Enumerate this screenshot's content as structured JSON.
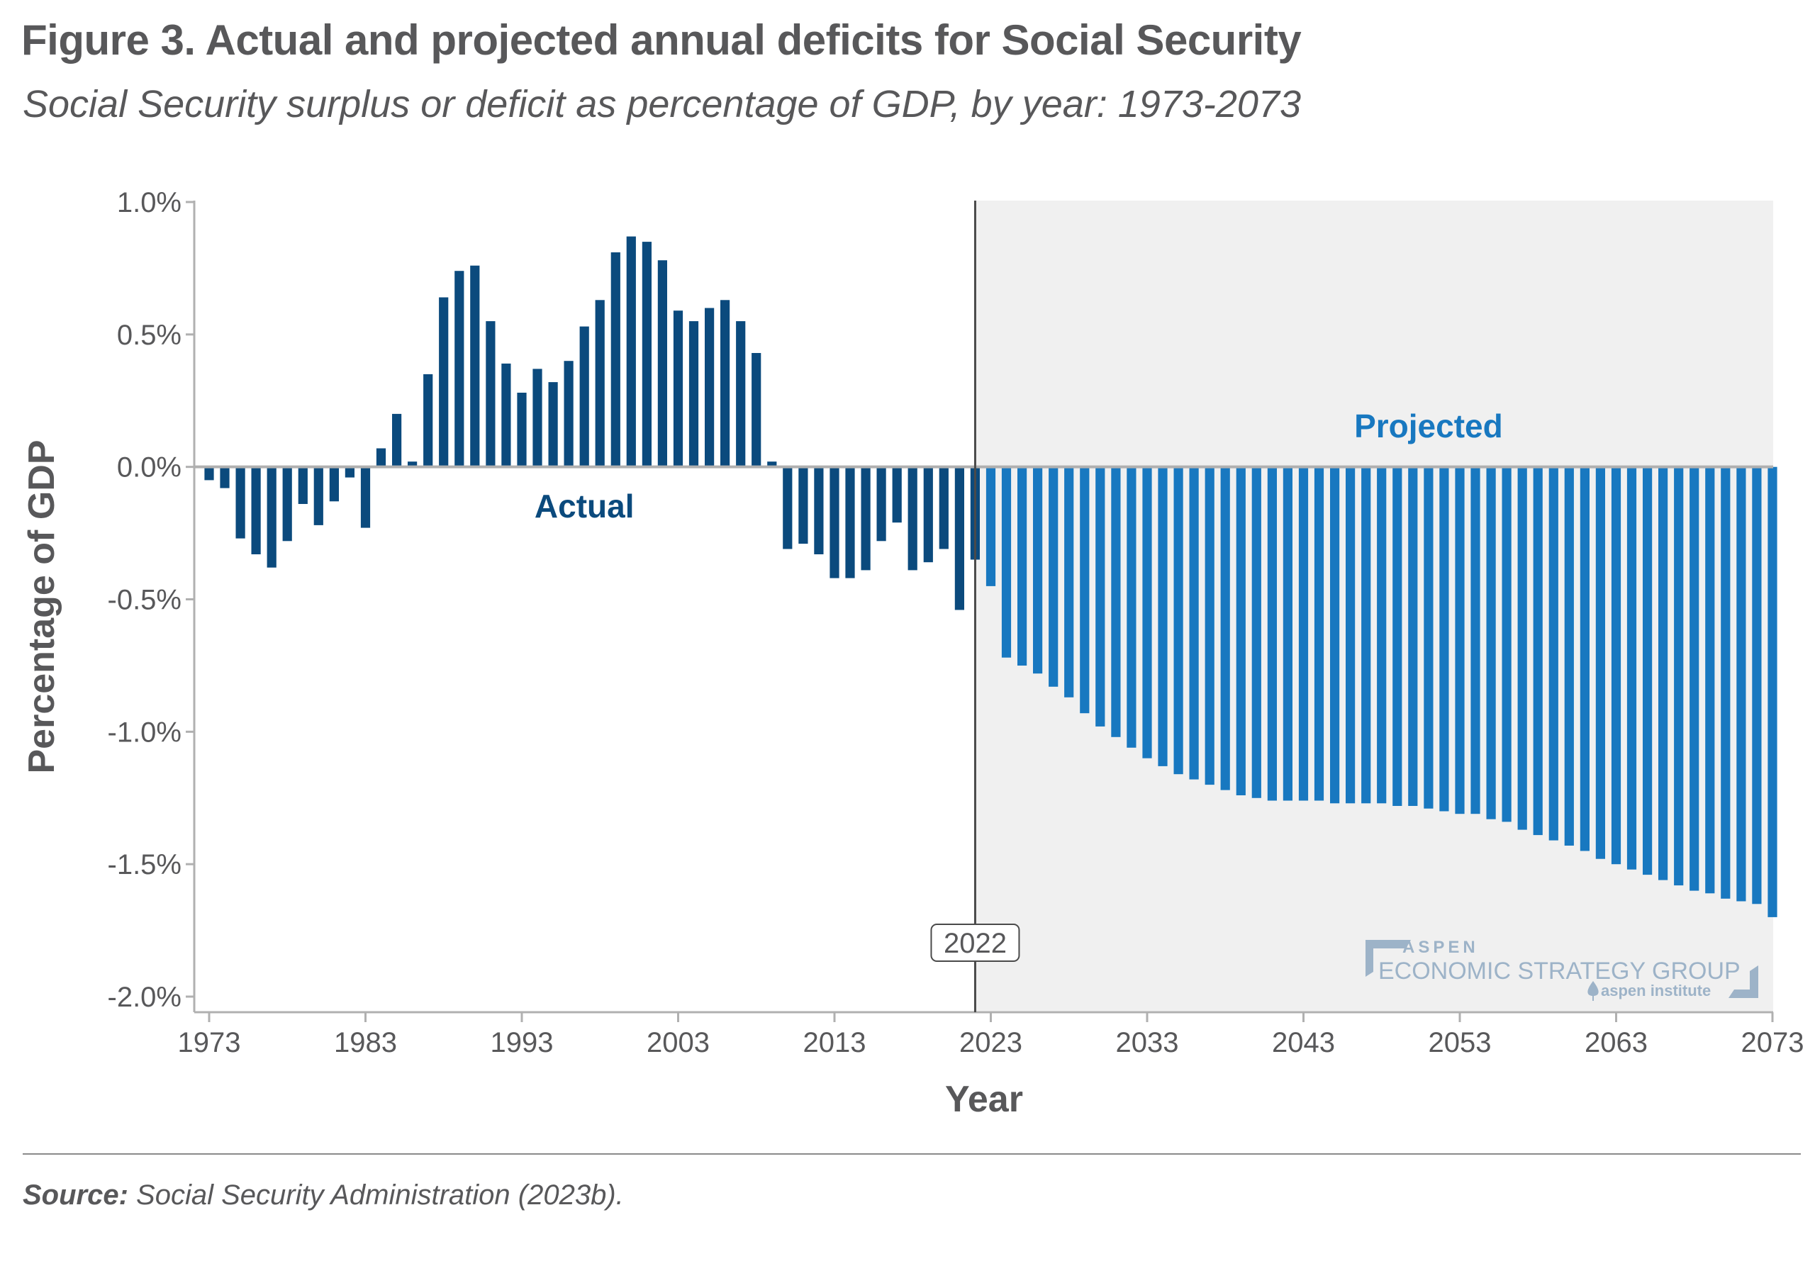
{
  "header": {
    "title": "Figure 3. Actual and projected annual deficits for Social Security",
    "subtitle": "Social Security surplus or deficit as percentage of GDP, by year: 1973-2073"
  },
  "footer": {
    "source_label": "Source:",
    "source_text": " Social Security Administration (2023b)."
  },
  "logo": {
    "line1": "ASPEN",
    "line2": "ECONOMIC STRATEGY GROUP",
    "line3": "aspen institute"
  },
  "colors": {
    "actual": "#0b4a7d",
    "projected": "#1878c0",
    "projected_bg": "#f0f0f0",
    "axis": "#b0b0b0",
    "text": "#58585a",
    "divider_line": "#4a4a4a"
  },
  "chart_data": {
    "type": "bar",
    "title": "Figure 3. Actual and projected annual deficits for Social Security",
    "subtitle": "Social Security surplus or deficit as percentage of GDP, by year: 1973-2073",
    "xlabel": "Year",
    "ylabel": "Percentage of GDP",
    "ylim": [
      -2.0,
      1.0
    ],
    "xlim": [
      1973,
      2073
    ],
    "yticks": [
      1.0,
      0.5,
      0.0,
      -0.5,
      -1.0,
      -1.5,
      -2.0
    ],
    "ytick_labels": [
      "1.0%",
      "0.5%",
      "0.0%",
      "-0.5%",
      "-1.0%",
      "-1.5%",
      "-2.0%"
    ],
    "xticks": [
      1973,
      1983,
      1993,
      2003,
      2013,
      2023,
      2033,
      2043,
      2053,
      2063,
      2073
    ],
    "xtick_labels": [
      "1973",
      "1983",
      "1993",
      "2003",
      "2013",
      "2023",
      "2033",
      "2043",
      "2053",
      "2063",
      "2073"
    ],
    "grid": false,
    "annotations": [
      {
        "text": "Actual",
        "series": "Actual"
      },
      {
        "text": "Projected",
        "series": "Projected"
      },
      {
        "text": "2022",
        "type": "vertical-line",
        "x": 2022
      }
    ],
    "series": [
      {
        "name": "Actual",
        "start_year": 1973,
        "values": [
          -0.05,
          -0.08,
          -0.27,
          -0.33,
          -0.38,
          -0.28,
          -0.14,
          -0.22,
          -0.13,
          -0.04,
          -0.23,
          0.07,
          0.2,
          0.02,
          0.35,
          0.64,
          0.74,
          0.76,
          0.55,
          0.39,
          0.28,
          0.37,
          0.32,
          0.4,
          0.53,
          0.63,
          0.81,
          0.87,
          0.85,
          0.78,
          0.59,
          0.55,
          0.6,
          0.63,
          0.55,
          0.43,
          0.02,
          -0.31,
          -0.29,
          -0.33,
          -0.42,
          -0.42,
          -0.39,
          -0.28,
          -0.21,
          -0.39,
          -0.36,
          -0.31,
          -0.54,
          -0.35
        ]
      },
      {
        "name": "Projected",
        "start_year": 2023,
        "values": [
          -0.45,
          -0.72,
          -0.75,
          -0.78,
          -0.83,
          -0.87,
          -0.93,
          -0.98,
          -1.02,
          -1.06,
          -1.1,
          -1.13,
          -1.16,
          -1.18,
          -1.2,
          -1.22,
          -1.24,
          -1.25,
          -1.26,
          -1.26,
          -1.26,
          -1.26,
          -1.27,
          -1.27,
          -1.27,
          -1.27,
          -1.28,
          -1.28,
          -1.29,
          -1.3,
          -1.31,
          -1.31,
          -1.33,
          -1.34,
          -1.37,
          -1.39,
          -1.41,
          -1.43,
          -1.45,
          -1.48,
          -1.5,
          -1.52,
          -1.54,
          -1.56,
          -1.58,
          -1.6,
          -1.61,
          -1.63,
          -1.64,
          -1.65,
          -1.7
        ]
      }
    ]
  }
}
